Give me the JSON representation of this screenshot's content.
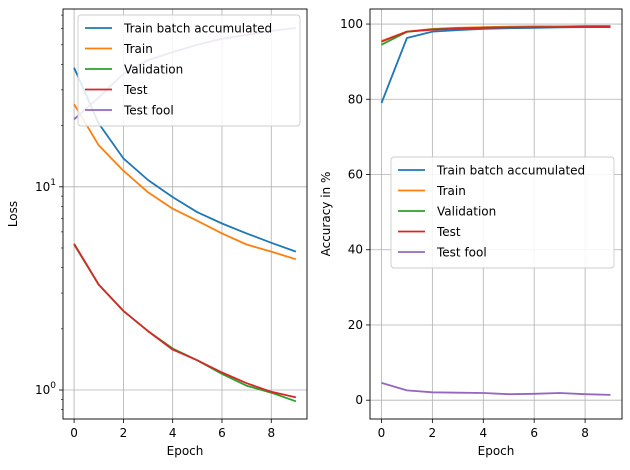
{
  "chart_data": [
    {
      "type": "line",
      "xlabel": "Epoch",
      "ylabel": "Loss",
      "yscale": "log",
      "xlim": [
        -0.45,
        9.45
      ],
      "ylim": [
        0.72,
        75
      ],
      "grid": true,
      "x": [
        0,
        1,
        2,
        3,
        4,
        5,
        6,
        7,
        8,
        9
      ],
      "xticks": [
        "0",
        "2",
        "4",
        "6",
        "8"
      ],
      "xtick_values": [
        0,
        2,
        4,
        6,
        8
      ],
      "yticks": [
        {
          "value": 1,
          "base": "10",
          "exp": "0"
        },
        {
          "value": 10,
          "base": "10",
          "exp": "1"
        }
      ],
      "legend_position": "top-right",
      "series": [
        {
          "name": "Train batch accumulated",
          "color": "#1f77b4",
          "values": [
            38.5,
            20.5,
            13.8,
            10.8,
            8.9,
            7.5,
            6.6,
            5.9,
            5.3,
            4.8
          ]
        },
        {
          "name": "Train",
          "color": "#ff7f0e",
          "values": [
            25.5,
            16.0,
            12.0,
            9.4,
            7.8,
            6.8,
            5.9,
            5.2,
            4.8,
            4.4
          ]
        },
        {
          "name": "Validation",
          "color": "#2ca02c",
          "values": [
            5.2,
            3.3,
            2.45,
            1.95,
            1.6,
            1.4,
            1.2,
            1.05,
            0.97,
            0.88
          ]
        },
        {
          "name": "Test",
          "color": "#d62728",
          "values": [
            5.25,
            3.3,
            2.45,
            1.95,
            1.58,
            1.4,
            1.22,
            1.08,
            0.98,
            0.92
          ]
        },
        {
          "name": "Test fool",
          "color": "#9467bd",
          "values": [
            21.5,
            27.5,
            36.0,
            42.0,
            46.0,
            50.0,
            53.5,
            56.0,
            58.5,
            60.5
          ]
        }
      ]
    },
    {
      "type": "line",
      "xlabel": "Epoch",
      "ylabel": "Accuracy in %",
      "xlim": [
        -0.45,
        9.45
      ],
      "ylim": [
        -5,
        104
      ],
      "grid": true,
      "x": [
        0,
        1,
        2,
        3,
        4,
        5,
        6,
        7,
        8,
        9
      ],
      "xticks": [
        "0",
        "2",
        "4",
        "6",
        "8"
      ],
      "xtick_values": [
        0,
        2,
        4,
        6,
        8
      ],
      "yticks": [
        "0",
        "20",
        "40",
        "60",
        "80",
        "100"
      ],
      "ytick_values": [
        0,
        20,
        40,
        60,
        80,
        100
      ],
      "legend_position": "center-right",
      "series": [
        {
          "name": "Train batch accumulated",
          "color": "#1f77b4",
          "values": [
            79.0,
            96.3,
            98.0,
            98.4,
            98.7,
            98.9,
            99.0,
            99.1,
            99.2,
            99.2
          ]
        },
        {
          "name": "Train",
          "color": "#ff7f0e",
          "values": [
            95.5,
            98.0,
            98.7,
            99.0,
            99.2,
            99.3,
            99.4,
            99.4,
            99.5,
            99.5
          ]
        },
        {
          "name": "Validation",
          "color": "#2ca02c",
          "values": [
            94.5,
            97.9,
            98.6,
            98.9,
            99.0,
            99.2,
            99.2,
            99.2,
            99.3,
            99.3
          ]
        },
        {
          "name": "Test",
          "color": "#d62728",
          "values": [
            95.3,
            98.0,
            98.5,
            98.8,
            99.0,
            99.1,
            99.2,
            99.2,
            99.3,
            99.3
          ]
        },
        {
          "name": "Test fool",
          "color": "#9467bd",
          "values": [
            4.6,
            2.6,
            2.1,
            2.0,
            1.9,
            1.6,
            1.7,
            1.9,
            1.6,
            1.4
          ]
        }
      ]
    }
  ]
}
